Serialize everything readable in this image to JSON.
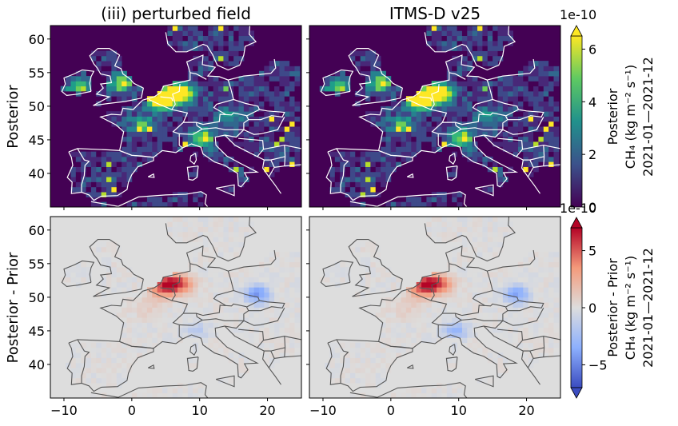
{
  "chart_data": [
    {
      "type": "heatmap",
      "panel": "top-left",
      "title": "(iii) perturbed field",
      "ylabel": "Posterior",
      "xlim": [
        -12,
        25
      ],
      "ylim": [
        35,
        62
      ],
      "yticks": [
        40,
        45,
        50,
        55,
        60
      ],
      "field": "posterior",
      "hotspots": [
        {
          "lon": 5.5,
          "lat": 51.5,
          "value": 6.5
        },
        {
          "lon": 7.5,
          "lat": 52.2,
          "value": 5.5
        },
        {
          "lon": 3.5,
          "lat": 51.0,
          "value": 5.0
        },
        {
          "lon": 10.5,
          "lat": 45.3,
          "value": 4.8
        },
        {
          "lon": -1.5,
          "lat": 53.5,
          "value": 4.2
        },
        {
          "lon": -7.5,
          "lat": 53.0,
          "value": 4.0
        },
        {
          "lon": 1.5,
          "lat": 47.5,
          "value": 3.0
        },
        {
          "lon": 14.5,
          "lat": 48.5,
          "value": 2.5
        }
      ]
    },
    {
      "type": "heatmap",
      "panel": "top-right",
      "title": "ITMS-D v25",
      "xlim": [
        -12,
        25
      ],
      "ylim": [
        35,
        62
      ],
      "field": "posterior",
      "hotspots": [
        {
          "lon": 5.5,
          "lat": 51.5,
          "value": 6.5
        },
        {
          "lon": 7.5,
          "lat": 52.2,
          "value": 5.5
        },
        {
          "lon": 3.5,
          "lat": 51.0,
          "value": 5.0
        },
        {
          "lon": 10.5,
          "lat": 45.3,
          "value": 4.8
        },
        {
          "lon": -1.5,
          "lat": 53.5,
          "value": 4.2
        },
        {
          "lon": -7.5,
          "lat": 53.0,
          "value": 4.0
        },
        {
          "lon": 1.5,
          "lat": 47.5,
          "value": 3.0
        },
        {
          "lon": 14.5,
          "lat": 48.5,
          "value": 2.5
        }
      ]
    },
    {
      "type": "heatmap",
      "panel": "bottom-left",
      "ylabel": "Posterior - Prior",
      "xlim": [
        -12,
        25
      ],
      "ylim": [
        35,
        62
      ],
      "xticks": [
        -10,
        0,
        10,
        20
      ],
      "yticks": [
        40,
        45,
        50,
        55,
        60
      ],
      "field": "difference",
      "hotspots": [
        {
          "lon": 5.5,
          "lat": 52.0,
          "value": 6.5
        },
        {
          "lon": 7.5,
          "lat": 52.0,
          "value": 3.5
        },
        {
          "lon": 4.0,
          "lat": 51.0,
          "value": 2.5
        },
        {
          "lon": 18.5,
          "lat": 50.5,
          "value": -4.5
        },
        {
          "lon": 9.5,
          "lat": 45.0,
          "value": -1.5
        },
        {
          "lon": 2.0,
          "lat": 48.5,
          "value": 1.0
        }
      ]
    },
    {
      "type": "heatmap",
      "panel": "bottom-right",
      "xlim": [
        -12,
        25
      ],
      "ylim": [
        35,
        62
      ],
      "xticks": [
        -10,
        0,
        10,
        20
      ],
      "field": "difference",
      "hotspots": [
        {
          "lon": 5.5,
          "lat": 52.0,
          "value": 6.5
        },
        {
          "lon": 7.5,
          "lat": 52.0,
          "value": 3.5
        },
        {
          "lon": 4.0,
          "lat": 51.0,
          "value": 2.5
        },
        {
          "lon": 18.5,
          "lat": 50.5,
          "value": -4.0
        },
        {
          "lon": 9.5,
          "lat": 45.0,
          "value": -3.0
        },
        {
          "lon": 2.0,
          "lat": 48.5,
          "value": 1.0
        }
      ]
    }
  ],
  "colorbars": {
    "top": {
      "scale": "1e-10",
      "ticks": [
        "0",
        "2",
        "4",
        "6"
      ],
      "range": [
        0,
        6.5
      ],
      "label_line1": "Posterior",
      "label_line2": "CH₄ (kg m⁻² s⁻¹)",
      "label_line3": "2021-01—2021-12",
      "colormap": "viridis"
    },
    "bottom": {
      "scale": "1e-10",
      "ticks": [
        "−5",
        "0",
        "5"
      ],
      "range": [
        -7,
        7
      ],
      "label_line1": "Posterior - Prior",
      "label_line2": "CH₄ (kg m⁻² s⁻¹)",
      "label_line3": "2021-01—2021-12",
      "colormap": "coolwarm"
    }
  },
  "labels": {
    "title_left": "(iii) perturbed field",
    "title_right": "ITMS-D v25",
    "row_top": "Posterior",
    "row_bottom": "Posterior - Prior",
    "x_ticks": [
      "−10",
      "0",
      "10",
      "20"
    ],
    "y_ticks": [
      "40",
      "45",
      "50",
      "55",
      "60"
    ]
  },
  "colors": {
    "coastline_top": "#ffffff",
    "coastline_bottom": "#555555",
    "neutral_bottom": "#dddddd"
  }
}
